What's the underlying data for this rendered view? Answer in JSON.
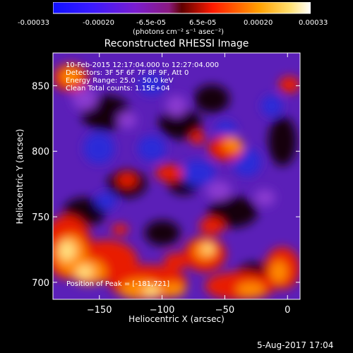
{
  "colorbar": {
    "ticks": [
      "-0.00033",
      "-0.00020",
      "-6.5e-05",
      "6.5e-05",
      "0.00020",
      "0.00033"
    ],
    "unit_label": "(photons cm⁻² s⁻¹ asec⁻²)",
    "colors": [
      "#1010ff",
      "#ff1a00",
      "#ffa000",
      "#ffffff"
    ]
  },
  "chart_data": {
    "type": "heatmap",
    "title": "Reconstructed RHESSI Image",
    "xlabel": "Heliocentric X (arcsec)",
    "ylabel": "Heliocentric Y (arcsec)",
    "xlim": [
      -187,
      10
    ],
    "ylim": [
      687,
      875
    ],
    "x_ticks": [
      -150,
      -100,
      -50,
      0
    ],
    "y_ticks": [
      700,
      750,
      800,
      850
    ],
    "x_tick_labels": [
      "−150",
      "−100",
      "−50",
      "0"
    ],
    "y_tick_labels": [
      "700",
      "750",
      "800",
      "850"
    ],
    "annotations": [
      "10-Feb-2015 12:17:04.000 to 12:27:04.000",
      "Detectors: 3F 5F 6F 7F 8F 9F, Att 0",
      "Energy Range: 25.0 - 50.0 keV",
      "Clean     Total counts: 1.15E+04"
    ],
    "peak_label": "Position of Peak = [-181,721]",
    "peak_position": [
      -181,
      721
    ],
    "vmin": -0.00033,
    "vmax": 0.00033
  },
  "footer": {
    "date_label": "5-Aug-2017 17:04"
  }
}
